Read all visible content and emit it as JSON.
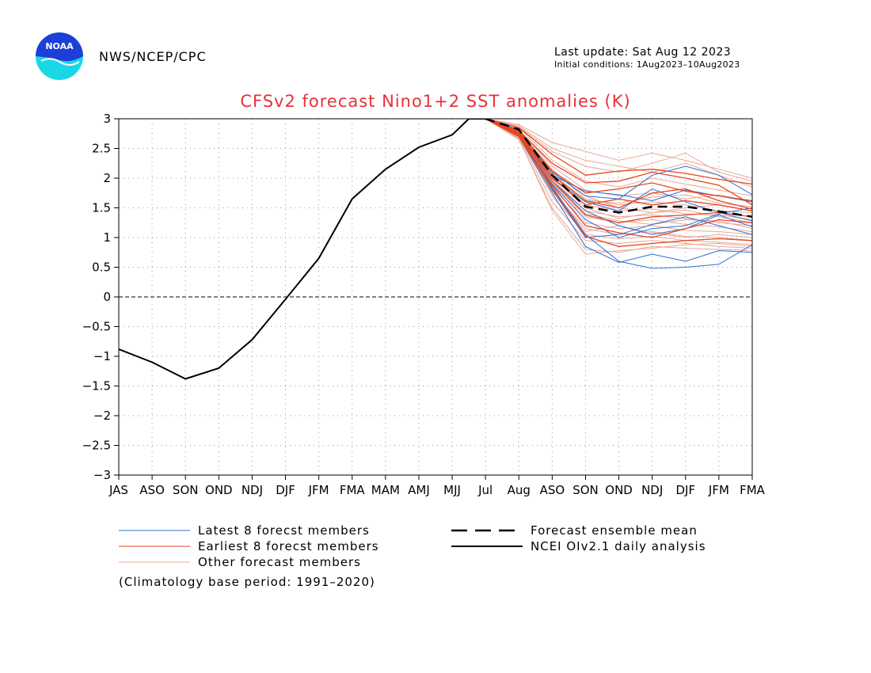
{
  "header": {
    "logo_text": "NOAA",
    "agency": "NWS/NCEP/CPC",
    "last_update": "Last update: Sat Aug 12 2023",
    "initial_conditions": "Initial conditions: 1Aug2023–10Aug2023"
  },
  "colors": {
    "latest": "#2a6fd6",
    "earliest": "#e8461e",
    "other": "#e8a898",
    "mean": "#000000",
    "analysis": "#000000",
    "title": "#e8303a",
    "logo_blue": "#1c3fd8",
    "logo_cyan": "#19d8e6"
  },
  "chart_data": {
    "type": "line",
    "title": "CFSv2 forecast Nino1+2 SST anomalies (K)",
    "categories": [
      "JAS",
      "ASO",
      "SON",
      "OND",
      "NDJ",
      "DJF",
      "JFM",
      "FMA",
      "MAM",
      "AMJ",
      "MJJ",
      "Jul",
      "Aug",
      "ASO",
      "SON",
      "OND",
      "NDJ",
      "DJF",
      "JFM",
      "FMA"
    ],
    "ylim": [
      -3,
      3
    ],
    "yticks": [
      "3",
      "2.5",
      "2",
      "1.5",
      "1",
      "0.5",
      "0",
      "−0.5",
      "−1",
      "−1.5",
      "−2",
      "−2.5",
      "−3"
    ],
    "ytick_values": [
      3,
      2.5,
      2,
      1.5,
      1,
      0.5,
      0,
      -0.5,
      -1,
      -1.5,
      -2,
      -2.5,
      -3
    ],
    "grid": "dotted",
    "zero_line": "dashed",
    "analysis": {
      "name": "NCEI OIv2.1 daily analysis",
      "x": [
        0,
        1,
        2,
        3,
        4,
        5,
        6,
        7,
        8,
        9,
        10,
        10.5,
        11
      ],
      "values": [
        -0.88,
        -1.1,
        -1.38,
        -1.2,
        -0.72,
        -0.04,
        0.65,
        1.65,
        2.15,
        2.52,
        2.73,
        3.0,
        3.0
      ]
    },
    "mean": {
      "name": "Forecast ensemble mean",
      "x": [
        11,
        12,
        13,
        14,
        15,
        16,
        17,
        18,
        19
      ],
      "values": [
        3.0,
        2.82,
        2.05,
        1.52,
        1.42,
        1.52,
        1.52,
        1.44,
        1.35
      ]
    },
    "latest": {
      "name": "Latest 8 forecst members",
      "x": [
        11,
        12,
        13,
        14,
        15,
        16,
        17,
        18,
        19
      ],
      "members": [
        [
          3.0,
          2.75,
          1.85,
          1.05,
          0.6,
          0.48,
          0.5,
          0.55,
          0.88
        ],
        [
          3.0,
          2.7,
          1.75,
          0.85,
          0.58,
          0.72,
          0.6,
          0.78,
          0.75
        ],
        [
          3.0,
          2.8,
          2.1,
          1.7,
          1.65,
          2.05,
          2.2,
          2.05,
          1.72
        ],
        [
          3.0,
          2.78,
          2.0,
          1.6,
          1.45,
          1.82,
          1.6,
          1.42,
          1.28
        ],
        [
          3.0,
          2.72,
          1.9,
          1.3,
          1.0,
          1.15,
          1.2,
          1.4,
          1.5
        ],
        [
          3.0,
          2.76,
          1.95,
          1.45,
          1.2,
          1.05,
          1.15,
          1.38,
          1.18
        ],
        [
          3.0,
          2.82,
          2.05,
          1.78,
          1.72,
          1.62,
          1.8,
          1.7,
          1.6
        ],
        [
          3.0,
          2.74,
          1.8,
          1.0,
          1.05,
          1.22,
          1.35,
          1.2,
          1.05
        ]
      ]
    },
    "earliest": {
      "name": "Earliest 8 forecst members",
      "x": [
        11,
        12,
        13,
        14,
        15,
        16,
        17,
        18,
        19
      ],
      "members": [
        [
          3.0,
          2.85,
          2.4,
          2.05,
          2.12,
          2.15,
          2.08,
          1.98,
          1.9
        ],
        [
          3.0,
          2.8,
          2.25,
          1.92,
          1.95,
          2.1,
          2.0,
          1.88,
          1.55
        ],
        [
          3.0,
          2.78,
          2.12,
          1.75,
          1.82,
          1.92,
          1.78,
          1.7,
          1.62
        ],
        [
          3.0,
          2.75,
          2.0,
          1.55,
          1.65,
          1.55,
          1.62,
          1.55,
          1.45
        ],
        [
          3.0,
          2.74,
          1.95,
          1.38,
          1.25,
          1.35,
          1.38,
          1.42,
          1.35
        ],
        [
          3.0,
          2.72,
          1.88,
          1.2,
          1.08,
          1.0,
          1.15,
          1.3,
          1.25
        ],
        [
          3.0,
          2.7,
          1.82,
          1.02,
          0.85,
          0.9,
          0.95,
          0.98,
          0.95
        ],
        [
          3.0,
          2.76,
          2.05,
          1.62,
          1.5,
          1.75,
          1.82,
          1.62,
          1.48
        ]
      ]
    },
    "others": {
      "name": "Other forecast members",
      "x": [
        11,
        12,
        13,
        14,
        15,
        16,
        17,
        18,
        19
      ],
      "members": [
        [
          3.0,
          2.9,
          2.6,
          2.45,
          2.3,
          2.42,
          2.3,
          2.15,
          2.0
        ],
        [
          3.0,
          2.88,
          2.5,
          2.3,
          2.2,
          2.1,
          2.25,
          2.05,
          1.85
        ],
        [
          3.0,
          2.85,
          2.3,
          1.95,
          1.85,
          2.0,
          1.9,
          1.8,
          1.7
        ],
        [
          3.0,
          2.82,
          2.2,
          1.8,
          1.7,
          1.75,
          1.65,
          1.72,
          1.6
        ],
        [
          3.0,
          2.8,
          2.15,
          1.65,
          1.55,
          1.6,
          1.55,
          1.45,
          1.42
        ],
        [
          3.0,
          2.78,
          2.05,
          1.55,
          1.45,
          1.48,
          1.4,
          1.38,
          1.3
        ],
        [
          3.0,
          2.76,
          1.98,
          1.45,
          1.35,
          1.38,
          1.32,
          1.25,
          1.2
        ],
        [
          3.0,
          2.75,
          1.92,
          1.35,
          1.25,
          1.3,
          1.22,
          1.18,
          1.1
        ],
        [
          3.0,
          2.73,
          1.85,
          1.25,
          1.15,
          1.2,
          1.12,
          1.1,
          1.05
        ],
        [
          3.0,
          2.72,
          1.78,
          1.15,
          1.05,
          1.1,
          1.02,
          1.0,
          0.95
        ],
        [
          3.0,
          2.7,
          1.7,
          1.05,
          0.98,
          1.02,
          0.95,
          0.92,
          0.88
        ],
        [
          3.0,
          2.68,
          1.6,
          0.95,
          0.9,
          0.95,
          0.9,
          0.85,
          0.82
        ],
        [
          3.0,
          2.65,
          1.5,
          0.8,
          0.75,
          0.85,
          0.82,
          0.8,
          0.78
        ],
        [
          3.0,
          2.66,
          1.45,
          0.72,
          0.78,
          0.82,
          0.88,
          0.9,
          0.85
        ],
        [
          3.0,
          2.8,
          2.1,
          1.7,
          1.5,
          1.42,
          1.5,
          1.55,
          1.45
        ],
        [
          3.0,
          2.77,
          2.02,
          1.5,
          1.32,
          1.42,
          1.46,
          1.35,
          1.25
        ],
        [
          3.0,
          2.74,
          1.95,
          1.4,
          1.28,
          1.22,
          1.3,
          1.28,
          1.15
        ],
        [
          3.0,
          2.86,
          2.45,
          2.2,
          2.1,
          2.25,
          2.42,
          2.1,
          1.95
        ],
        [
          3.0,
          2.71,
          1.82,
          1.1,
          1.2,
          1.08,
          1.0,
          1.05,
          1.0
        ],
        [
          3.0,
          2.79,
          2.08,
          1.62,
          1.58,
          1.68,
          1.72,
          1.58,
          1.52
        ]
      ]
    }
  },
  "legend": {
    "latest": "Latest 8 forecst members",
    "earliest": "Earliest 8 forecst members",
    "other": "Other forecast members",
    "mean": "Forecast ensemble mean",
    "analysis": "NCEI OIv2.1 daily analysis"
  },
  "footnote": "(Climatology base period: 1991–2020)"
}
